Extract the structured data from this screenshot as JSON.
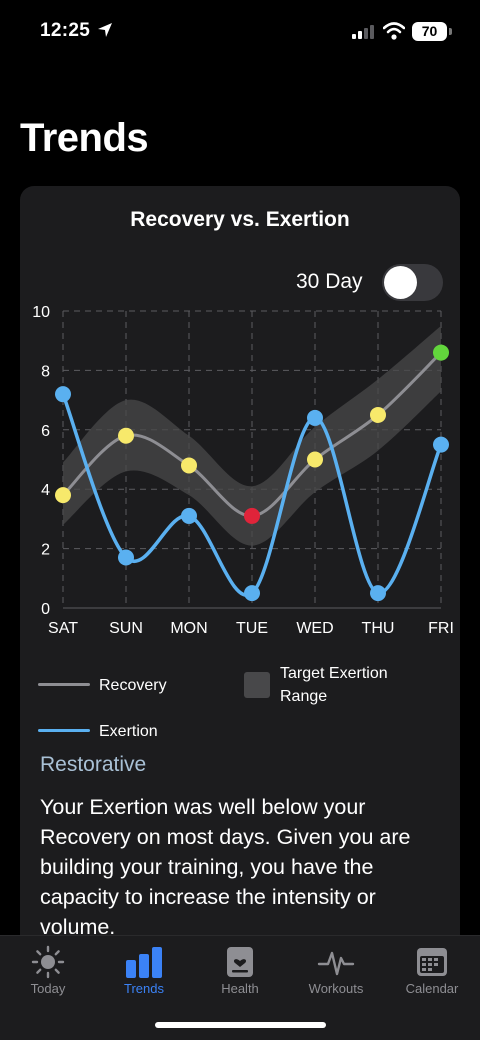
{
  "status": {
    "time": "12:25",
    "battery": "70"
  },
  "page_title": "Trends",
  "card": {
    "title": "Recovery vs. Exertion",
    "toggle_label": "30 Day",
    "toggle_on": false
  },
  "legend": {
    "recovery": "Recovery",
    "exertion": "Exertion",
    "target_line1": "Target Exertion",
    "target_line2": "Range"
  },
  "summary": {
    "heading": "Restorative",
    "text": "Your Exertion was well below your Recovery on most days.  Given you are building your training, you have the capacity to increase the intensity or volume."
  },
  "chart_data": {
    "type": "line",
    "categories": [
      "SAT",
      "SUN",
      "MON",
      "TUE",
      "WED",
      "THU",
      "FRI"
    ],
    "series": [
      {
        "name": "Recovery",
        "values": [
          3.8,
          5.8,
          4.8,
          3.1,
          5.0,
          6.5,
          8.6
        ],
        "color": "#8e8e93",
        "point_colors": [
          "#f7e96b",
          "#f7e96b",
          "#f7e96b",
          "#e0243a",
          "#f7e96b",
          "#f7e96b",
          "#62d63c"
        ]
      },
      {
        "name": "Exertion",
        "values": [
          7.2,
          1.7,
          3.1,
          0.5,
          6.4,
          0.5,
          5.5
        ],
        "color": "#5ab0f0"
      },
      {
        "name": "Target Exertion Range",
        "band_lower": [
          2.8,
          4.6,
          3.8,
          2.1,
          3.9,
          5.3,
          7.3
        ],
        "band_upper": [
          4.9,
          7.0,
          5.8,
          4.1,
          6.1,
          7.7,
          9.5
        ],
        "color": "#48484a"
      }
    ],
    "ylim": [
      0,
      10
    ],
    "yticks": [
      0,
      2,
      4,
      6,
      8,
      10
    ],
    "grid": true,
    "legend": "bottom"
  },
  "tabs": [
    {
      "label": "Today",
      "icon": "sun-icon",
      "active": false
    },
    {
      "label": "Trends",
      "icon": "bar-chart-icon",
      "active": true
    },
    {
      "label": "Health",
      "icon": "health-icon",
      "active": false
    },
    {
      "label": "Workouts",
      "icon": "heartbeat-icon",
      "active": false
    },
    {
      "label": "Calendar",
      "icon": "calendar-icon",
      "active": false
    }
  ]
}
